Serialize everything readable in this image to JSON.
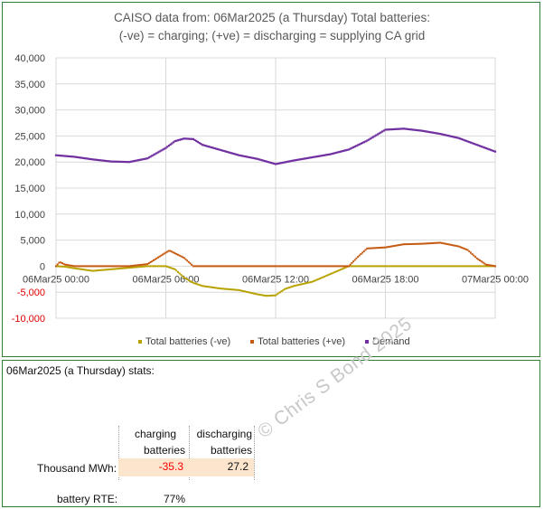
{
  "chart": {
    "title_line1": "CAISO data from:  06Mar2025  (a Thursday)   Total batteries:",
    "title_line2": "(-ve) = charging;   (+ve) = discharging = supplying CA grid",
    "legend": [
      {
        "label": "Total batteries (-ve)",
        "color": "#b8a200"
      },
      {
        "label": "Total batteries (+ve)",
        "color": "#c55a11"
      },
      {
        "label": "Demand",
        "color": "#7030a0"
      }
    ]
  },
  "chart_data": {
    "type": "scatter",
    "title": "CAISO data from:  06Mar2025  (a Thursday)   Total batteries:",
    "subtitle": "(-ve) = charging;   (+ve) = discharging = supplying CA grid",
    "xlabel": "",
    "ylabel": "",
    "ylim": [
      -10000,
      40000
    ],
    "yticks": [
      -10000,
      -5000,
      0,
      5000,
      10000,
      15000,
      20000,
      25000,
      30000,
      35000,
      40000
    ],
    "ytick_labels": [
      "-10,000",
      "-5,000",
      "0",
      "5,000",
      "10,000",
      "15,000",
      "20,000",
      "25,000",
      "30,000",
      "35,000",
      "40,000"
    ],
    "xticks": [
      0,
      6,
      12,
      18,
      24
    ],
    "xtick_labels": [
      "06Mar25 00:00",
      "06Mar25 06:00",
      "06Mar25 12:00",
      "06Mar25 18:00",
      "07Mar25 00:00"
    ],
    "x_unit": "hours from 06Mar25 00:00",
    "grid": true,
    "legend_position": "bottom",
    "series": [
      {
        "name": "Demand",
        "color": "#7030a0",
        "x": [
          0,
          1,
          2,
          3,
          4,
          5,
          6,
          6.5,
          7,
          7.5,
          8,
          9,
          10,
          11,
          12,
          13,
          14,
          15,
          16,
          17,
          18,
          19,
          20,
          21,
          22,
          23,
          24
        ],
        "values": [
          21300,
          21000,
          20500,
          20100,
          20000,
          20700,
          22700,
          24000,
          24500,
          24400,
          23300,
          22300,
          21300,
          20600,
          19600,
          20300,
          20900,
          21500,
          22400,
          24100,
          26200,
          26400,
          26000,
          25400,
          24600,
          23300,
          22000
        ]
      },
      {
        "name": "Total batteries (+ve)",
        "color": "#c55a11",
        "x": [
          0,
          0.2,
          0.5,
          1,
          2,
          3,
          4,
          5,
          6,
          6.2,
          7,
          7.5,
          8,
          9,
          15,
          16,
          16.5,
          17,
          18,
          19,
          20,
          21,
          22,
          22.5,
          23,
          23.5,
          24
        ],
        "values": [
          0,
          800,
          300,
          0,
          0,
          0,
          0,
          400,
          2600,
          3000,
          1600,
          0,
          0,
          0,
          0,
          0,
          1800,
          3400,
          3600,
          4200,
          4300,
          4500,
          3800,
          3100,
          1500,
          300,
          0
        ]
      },
      {
        "name": "Total batteries (-ve)",
        "color": "#b8a200",
        "x": [
          0,
          0.5,
          1,
          2,
          3,
          4,
          5,
          6,
          6.5,
          7,
          7.5,
          8,
          9,
          10,
          11,
          11.5,
          12,
          12.5,
          13,
          14,
          15,
          16,
          17,
          18,
          20,
          22,
          24
        ],
        "values": [
          0,
          -100,
          -400,
          -900,
          -600,
          -300,
          0,
          0,
          -600,
          -2200,
          -3200,
          -3800,
          -4300,
          -4600,
          -5400,
          -5700,
          -5600,
          -4400,
          -3800,
          -3000,
          -1500,
          0,
          0,
          0,
          0,
          0,
          0
        ]
      }
    ]
  },
  "stats": {
    "heading": "06Mar2025  (a Thursday) stats:",
    "col1_line1": "charging",
    "col1_line2": "batteries",
    "col2_line1": "discharging",
    "col2_line2": "batteries",
    "row_label": "Thousand MWh:",
    "charging_value": "-35.3",
    "discharging_value": "27.2",
    "rte_label": "battery RTE:",
    "rte_value": "77%",
    "charging_color": "#ff0000"
  },
  "watermark": "© Chris S Bond  2025"
}
